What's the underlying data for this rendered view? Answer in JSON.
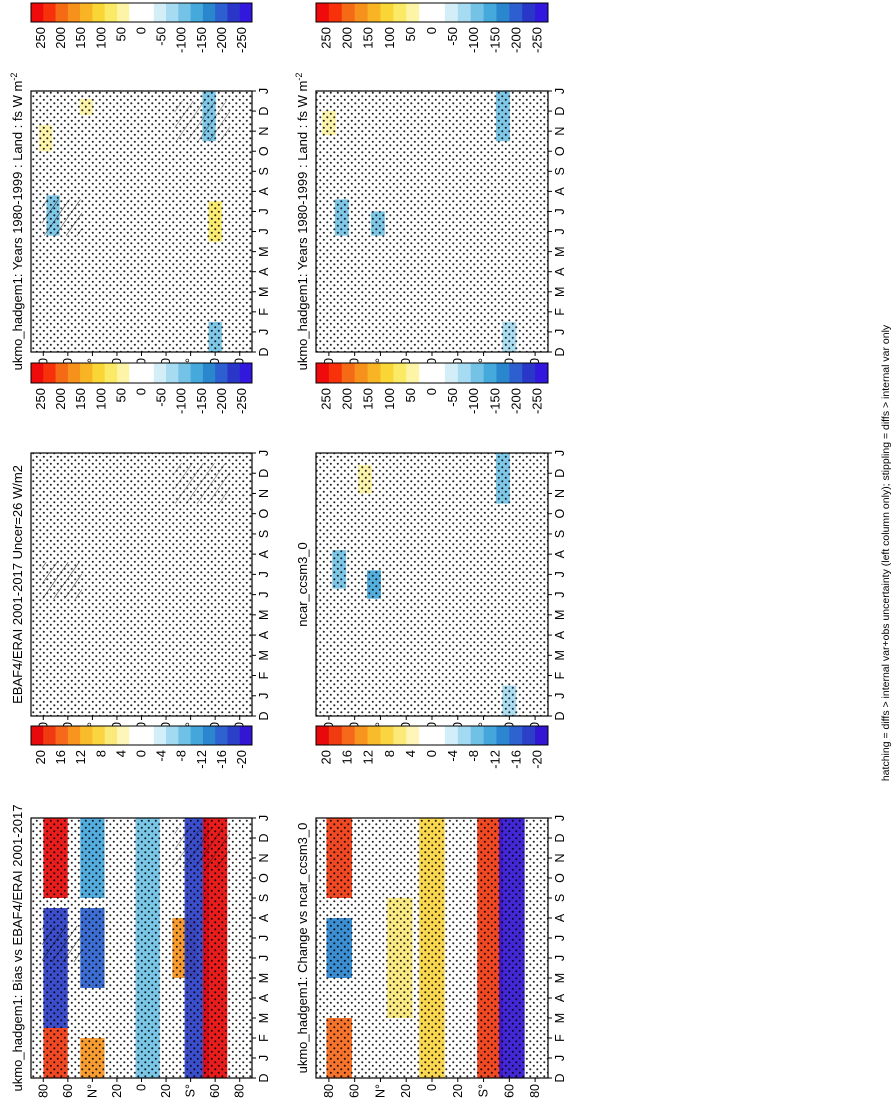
{
  "figure": {
    "footnote": "hatching = diffs > internal var+obs uncertainty (left column only); stippling = diffs > internal var only"
  },
  "colors": {
    "flux": [
      "#ef0b0b",
      "#f7320b",
      "#f56a14",
      "#f6911c",
      "#f8b425",
      "#f9d536",
      "#fbea66",
      "#fdf4a5",
      "#ffffff",
      "#ffffff",
      "#d4eef8",
      "#a6dbf1",
      "#74c3e6",
      "#45a9dc",
      "#2a87cd",
      "#2e5fd0",
      "#2a36c8",
      "#3218dc"
    ],
    "diff": [
      "#e80a0a",
      "#f03a10",
      "#f6681a",
      "#f7951f",
      "#f8bb2b",
      "#fad541",
      "#fbe979",
      "#fdf6b8",
      "#ffffff",
      "#ffffff",
      "#d2eef8",
      "#a4daf1",
      "#6fc2e6",
      "#45a6dc",
      "#2b86cf",
      "#2d62cf",
      "#2b3fc8",
      "#3216d4"
    ]
  },
  "colorbars": {
    "flux_labels": [
      "250",
      "200",
      "150",
      "100",
      "50",
      "0",
      "-50",
      "-100",
      "-150",
      "-200",
      "-250"
    ],
    "diff_labels": [
      "20",
      "16",
      "12",
      "8",
      "4",
      "0",
      "-4",
      "-8",
      "-12",
      "-16",
      "-20"
    ]
  },
  "axes": {
    "months": [
      "D",
      "J",
      "F",
      "M",
      "A",
      "M",
      "J",
      "J",
      "A",
      "S",
      "O",
      "N",
      "D",
      "J"
    ],
    "lat_labels": [
      "80",
      "60",
      "N°",
      "20",
      "0",
      "20",
      "S°",
      "60",
      "80"
    ]
  },
  "panels": {
    "p1": {
      "title": "ukmo_hadgem1: Years 1980-1999 : Land : fs W m",
      "superscript": "-2"
    },
    "p2": {
      "title": "ukmo_hadgem1: Years 1980-1999 : Land : fs W m",
      "superscript": "-2"
    },
    "p3": {
      "title": "EBAF4/ERAI 2001-2017 Uncer=26 W/m2",
      "superscript": ""
    },
    "p4": {
      "title": "ncar_ccsm3_0",
      "superscript": ""
    },
    "p5": {
      "title": "ukmo_hadgem1: Bias vs EBAF4/ERAI 2001-2017",
      "superscript": ""
    },
    "p6": {
      "title": "ukmo_hadgem1: Change vs ncar_ccsm3_0",
      "superscript": ""
    }
  },
  "chart_data": [
    {
      "id": "p1",
      "type": "heatmap",
      "title": "ukmo_hadgem1: Years 1980-1999 : Land : fs W m-2",
      "x": [
        "D",
        "J",
        "F",
        "M",
        "A",
        "M",
        "J",
        "J",
        "A",
        "S",
        "O",
        "N",
        "D",
        "J"
      ],
      "y": [
        "80",
        "60",
        "N°",
        "20",
        "0",
        "20",
        "S°",
        "60",
        "80"
      ],
      "colorbar": {
        "min": -250,
        "max": 250,
        "labels": [
          "250",
          "200",
          "150",
          "100",
          "50",
          "0",
          "-50",
          "-100",
          "-150",
          "-200",
          "-250"
        ]
      },
      "features": [
        {
          "lat": 72,
          "month_start": 5.8,
          "month_end": 7.8,
          "value": -110
        },
        {
          "lat": 78,
          "month_start": 10.0,
          "month_end": 11.3,
          "value": 55
        },
        {
          "lat": 45,
          "month_start": 11.8,
          "month_end": 12.6,
          "value": 45
        },
        {
          "lat": -55,
          "month_start": 10.5,
          "month_end": 13.0,
          "value": -110
        },
        {
          "lat": -60,
          "month_start": 0.0,
          "month_end": 1.5,
          "value": -90
        },
        {
          "lat": -60,
          "month_start": 5.5,
          "month_end": 7.5,
          "value": 60
        }
      ]
    },
    {
      "id": "p2",
      "type": "heatmap",
      "title": "ukmo_hadgem1: Years 1980-1999 : Land : fs W m-2",
      "x": [
        "D",
        "J",
        "F",
        "M",
        "A",
        "M",
        "J",
        "J",
        "A",
        "S",
        "O",
        "N",
        "D",
        "J"
      ],
      "y": [
        "80",
        "60",
        "N°",
        "20",
        "0",
        "20",
        "S°",
        "60",
        "80"
      ],
      "colorbar": {
        "min": -250,
        "max": 250,
        "labels": [
          "250",
          "200",
          "150",
          "100",
          "50",
          "0",
          "-50",
          "-100",
          "-150",
          "-200",
          "-250"
        ]
      },
      "features": [
        {
          "lat": 70,
          "month_start": 5.8,
          "month_end": 7.6,
          "value": -90
        },
        {
          "lat": 42,
          "month_start": 5.8,
          "month_end": 7.0,
          "value": -110
        },
        {
          "lat": 80,
          "month_start": 10.8,
          "month_end": 12.0,
          "value": 40
        },
        {
          "lat": -55,
          "month_start": 10.5,
          "month_end": 13.0,
          "value": -100
        },
        {
          "lat": -60,
          "month_start": 0.0,
          "month_end": 1.5,
          "value": -80
        }
      ]
    },
    {
      "id": "p3",
      "type": "heatmap",
      "title": "EBAF4/ERAI 2001-2017 Uncer=26 W/m2",
      "x": [
        "D",
        "J",
        "F",
        "M",
        "A",
        "M",
        "J",
        "J",
        "A",
        "S",
        "O",
        "N",
        "D",
        "J"
      ],
      "y": [
        "80",
        "60",
        "N°",
        "20",
        "0",
        "20",
        "S°",
        "60",
        "80"
      ],
      "colorbar": {
        "min": -250,
        "max": 250,
        "labels": [
          "250",
          "200",
          "150",
          "100",
          "50",
          "0",
          "-50",
          "-100",
          "-150",
          "-200",
          "-250"
        ]
      },
      "features": []
    },
    {
      "id": "p4",
      "type": "heatmap",
      "title": "ncar_ccsm3_0",
      "x": [
        "D",
        "J",
        "F",
        "M",
        "A",
        "M",
        "J",
        "J",
        "A",
        "S",
        "O",
        "N",
        "D",
        "J"
      ],
      "y": [
        "80",
        "60",
        "N°",
        "20",
        "0",
        "20",
        "S°",
        "60",
        "80"
      ],
      "colorbar": {
        "min": -250,
        "max": 250,
        "labels": [
          "250",
          "200",
          "150",
          "100",
          "50",
          "0",
          "-50",
          "-100",
          "-150",
          "-200",
          "-250"
        ]
      },
      "features": [
        {
          "lat": 72,
          "month_start": 6.3,
          "month_end": 8.2,
          "value": -100
        },
        {
          "lat": 45,
          "month_start": 5.8,
          "month_end": 7.2,
          "value": -120
        },
        {
          "lat": 52,
          "month_start": 11.0,
          "month_end": 12.4,
          "value": 40
        },
        {
          "lat": -55,
          "month_start": 10.5,
          "month_end": 13.0,
          "value": -90
        },
        {
          "lat": -60,
          "month_start": 0.0,
          "month_end": 1.5,
          "value": -80
        }
      ]
    },
    {
      "id": "p5",
      "type": "heatmap",
      "title": "ukmo_hadgem1: Bias vs EBAF4/ERAI 2001-2017",
      "x": [
        "D",
        "J",
        "F",
        "M",
        "A",
        "M",
        "J",
        "J",
        "A",
        "S",
        "O",
        "N",
        "D",
        "J"
      ],
      "y": [
        "80",
        "60",
        "N°",
        "20",
        "0",
        "20",
        "S°",
        "60",
        "80"
      ],
      "colorbar": {
        "min": -20,
        "max": 20,
        "labels": [
          "20",
          "16",
          "12",
          "8",
          "4",
          "0",
          "-4",
          "-8",
          "-12",
          "-16",
          "-20"
        ]
      },
      "features": [
        {
          "lat": 70,
          "month_start": 0.0,
          "month_end": 2.5,
          "value": 16
        },
        {
          "lat": 70,
          "month_start": 2.5,
          "month_end": 8.5,
          "value": -16
        },
        {
          "lat": 70,
          "month_start": 9.0,
          "month_end": 13.0,
          "value": 18
        },
        {
          "lat": 40,
          "month_start": 0.0,
          "month_end": 2.0,
          "value": 12
        },
        {
          "lat": 40,
          "month_start": 4.5,
          "month_end": 8.5,
          "value": -14
        },
        {
          "lat": 40,
          "month_start": 9.0,
          "month_end": 13.0,
          "value": -10
        },
        {
          "lat": -5,
          "month_start": 0.0,
          "month_end": 13.0,
          "value": -8
        },
        {
          "lat": -35,
          "month_start": 5.0,
          "month_end": 8.0,
          "value": 12
        },
        {
          "lat": -45,
          "month_start": 0.0,
          "month_end": 13.0,
          "value": -16
        },
        {
          "lat": -60,
          "month_start": 0.0,
          "month_end": 13.0,
          "value": 20
        }
      ]
    },
    {
      "id": "p6",
      "type": "heatmap",
      "title": "ukmo_hadgem1: Change vs ncar_ccsm3_0",
      "x": [
        "D",
        "J",
        "F",
        "M",
        "A",
        "M",
        "J",
        "J",
        "A",
        "S",
        "O",
        "N",
        "D",
        "J"
      ],
      "y": [
        "80",
        "60",
        "N°",
        "20",
        "0",
        "20",
        "S°",
        "60",
        "80"
      ],
      "colorbar": {
        "min": -20,
        "max": 20,
        "labels": [
          "20",
          "16",
          "12",
          "8",
          "4",
          "0",
          "-4",
          "-8",
          "-12",
          "-16",
          "-20"
        ]
      },
      "features": [
        {
          "lat": 72,
          "month_start": 0.0,
          "month_end": 3.0,
          "value": 14
        },
        {
          "lat": 72,
          "month_start": 5.0,
          "month_end": 8.0,
          "value": -12
        },
        {
          "lat": 72,
          "month_start": 9.0,
          "month_end": 13.0,
          "value": 16
        },
        {
          "lat": 25,
          "month_start": 3.0,
          "month_end": 9.0,
          "value": 6
        },
        {
          "lat": 0,
          "month_start": 0.0,
          "month_end": 13.0,
          "value": 8
        },
        {
          "lat": -45,
          "month_start": 0.0,
          "month_end": 13.0,
          "value": 16
        },
        {
          "lat": -62,
          "month_start": 0.0,
          "month_end": 13.0,
          "value": -18
        }
      ]
    }
  ]
}
